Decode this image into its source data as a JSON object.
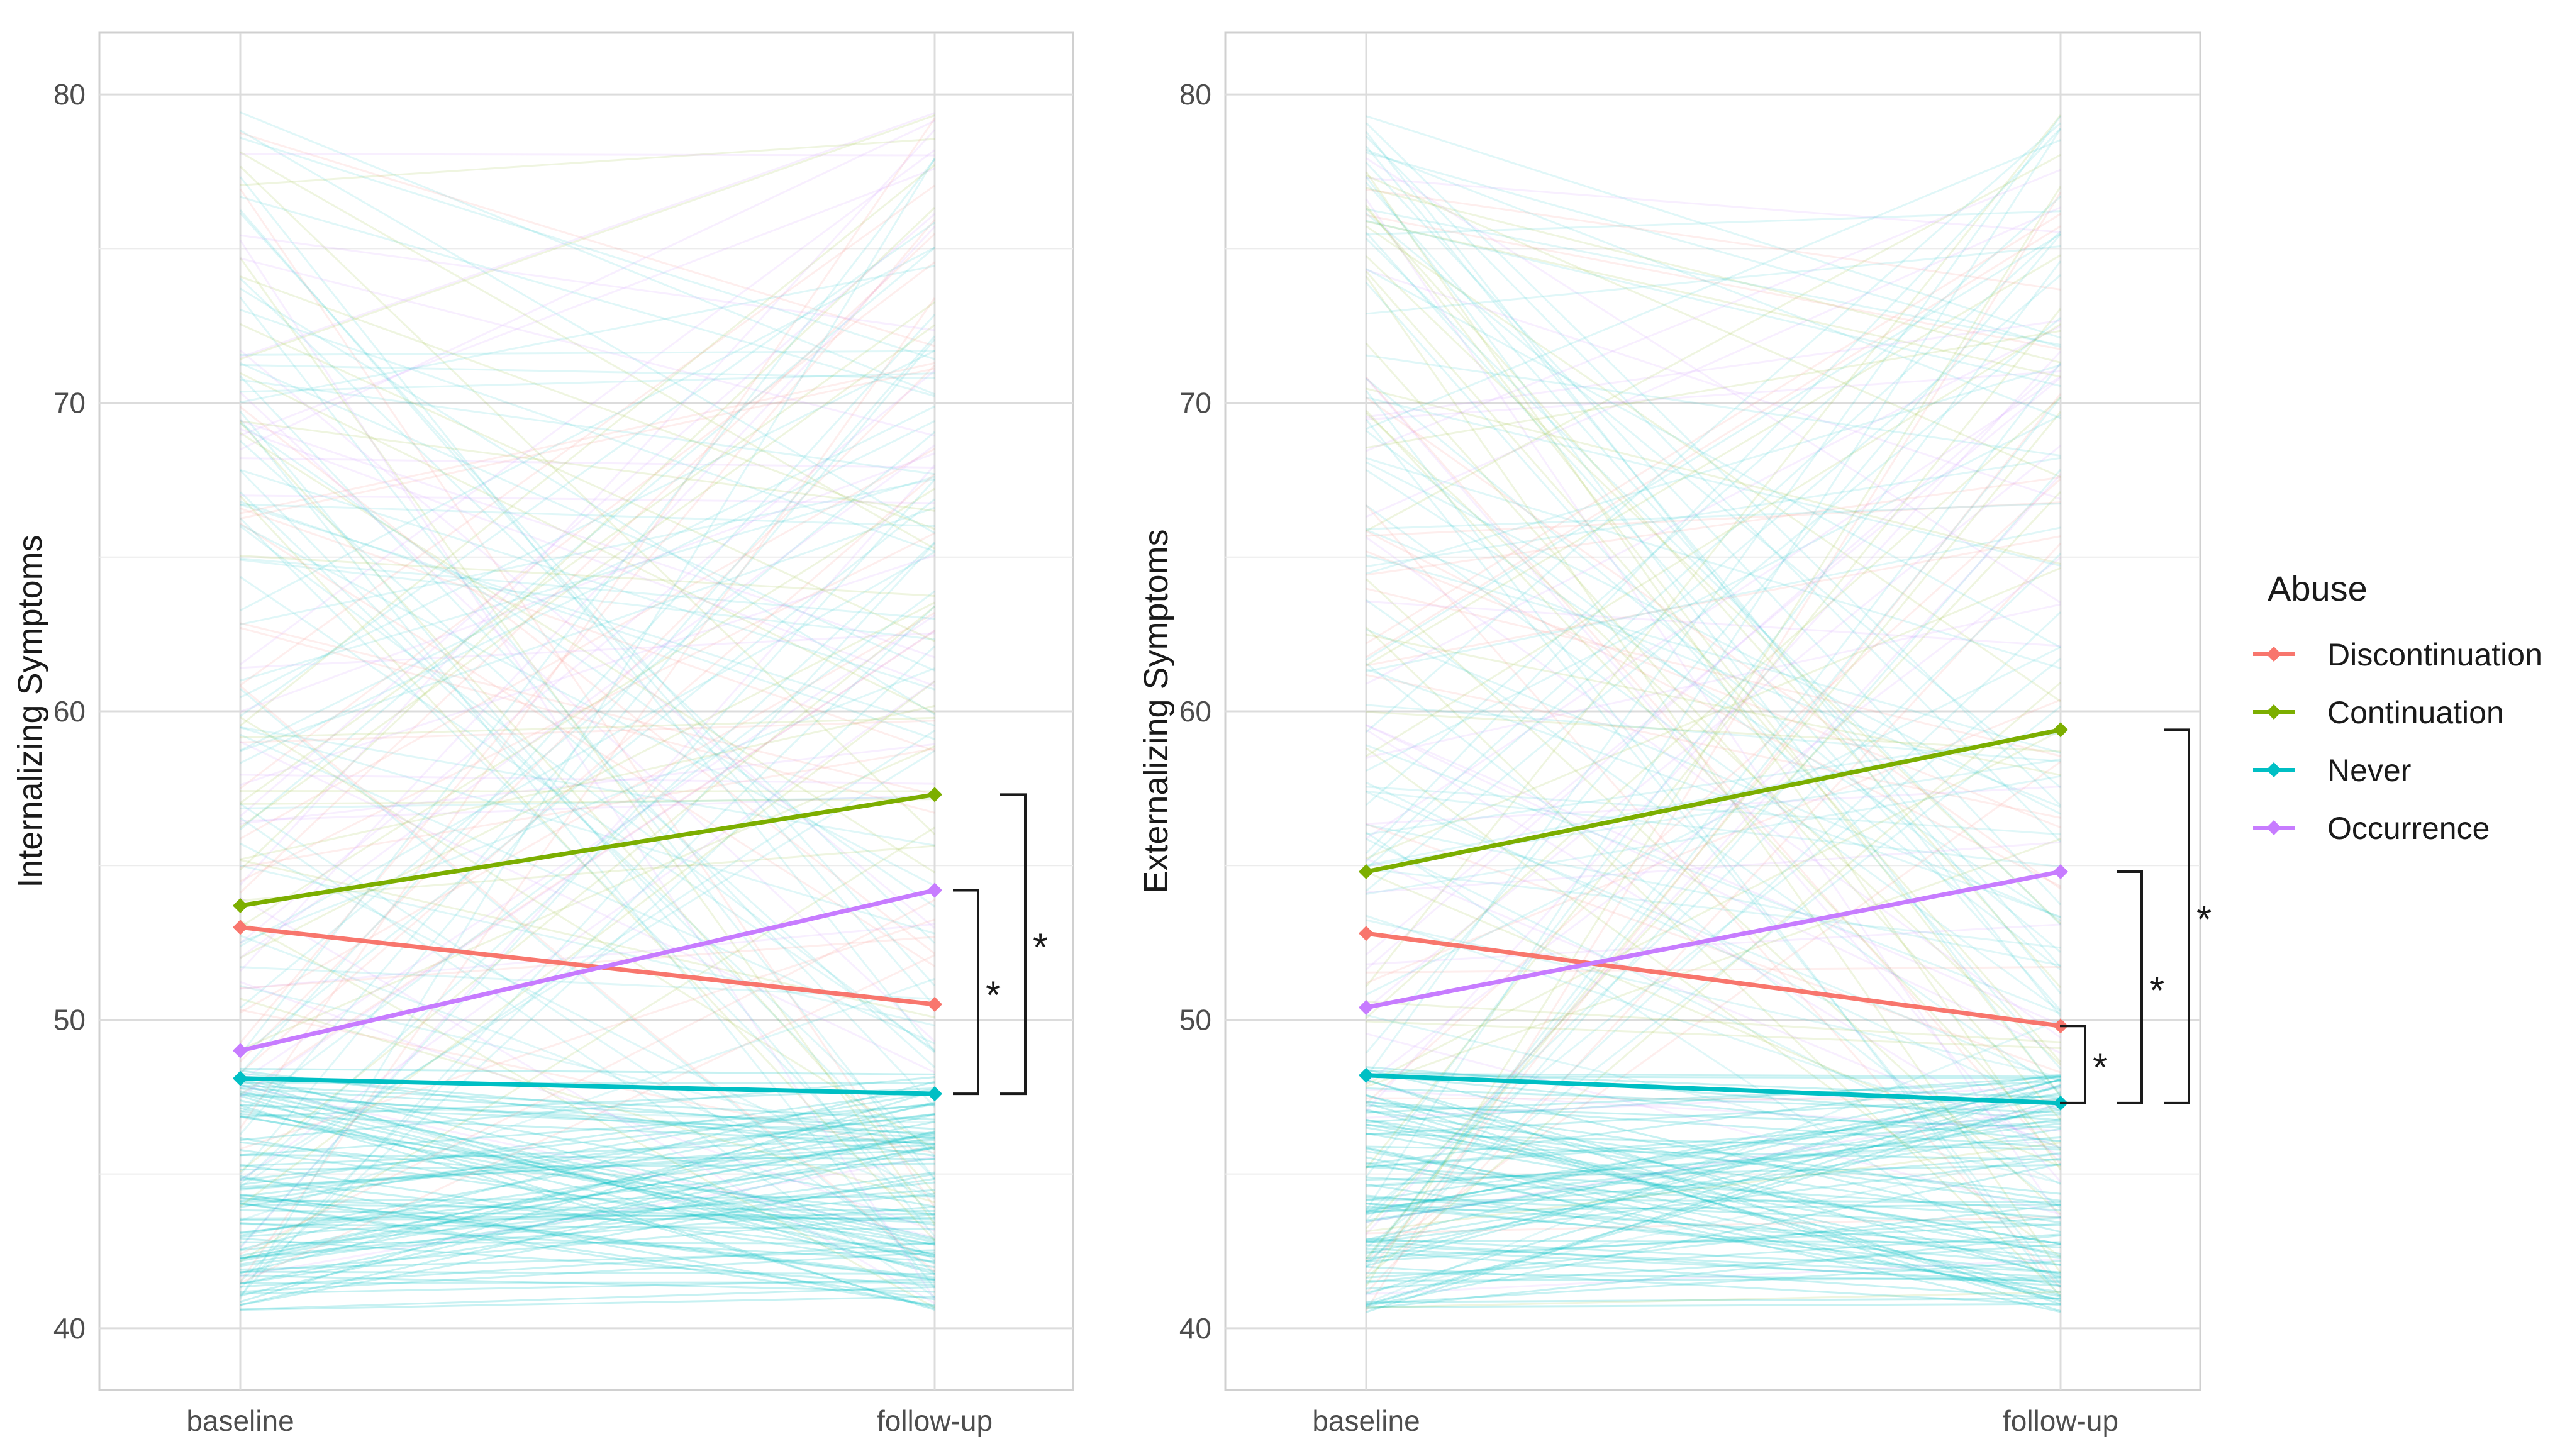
{
  "chart_data": [
    {
      "type": "line",
      "panel": "left",
      "ylabel": "Internalizing Symptoms",
      "xlabel": "",
      "categories": [
        "baseline",
        "follow-up"
      ],
      "ylim": [
        38,
        82
      ],
      "yticks": [
        40,
        50,
        60,
        70,
        80
      ],
      "series": [
        {
          "name": "Discontinuation",
          "values": [
            53.0,
            50.5
          ]
        },
        {
          "name": "Continuation",
          "values": [
            53.7,
            57.3
          ]
        },
        {
          "name": "Never",
          "values": [
            48.1,
            47.6
          ]
        },
        {
          "name": "Occurrence",
          "values": [
            49.0,
            54.2
          ]
        }
      ],
      "significance": [
        {
          "label": "*",
          "from": 47.6,
          "to": 54.2
        },
        {
          "label": "*",
          "from": 47.6,
          "to": 57.3
        }
      ],
      "background_lines": "individual trajectories (faint)"
    },
    {
      "type": "line",
      "panel": "right",
      "ylabel": "Externalizing Symptoms",
      "xlabel": "",
      "categories": [
        "baseline",
        "follow-up"
      ],
      "ylim": [
        38,
        82
      ],
      "yticks": [
        40,
        50,
        60,
        70,
        80
      ],
      "series": [
        {
          "name": "Discontinuation",
          "values": [
            52.8,
            49.8
          ]
        },
        {
          "name": "Continuation",
          "values": [
            54.8,
            59.4
          ]
        },
        {
          "name": "Never",
          "values": [
            48.2,
            47.3
          ]
        },
        {
          "name": "Occurrence",
          "values": [
            50.4,
            54.8
          ]
        }
      ],
      "significance": [
        {
          "label": "*",
          "from": 47.3,
          "to": 49.8
        },
        {
          "label": "*",
          "from": 47.3,
          "to": 54.8
        },
        {
          "label": "*",
          "from": 47.3,
          "to": 59.4
        }
      ],
      "background_lines": "individual trajectories (faint)"
    }
  ],
  "legend": {
    "title": "Abuse",
    "items": [
      {
        "label": "Discontinuation",
        "color": "#F8766D"
      },
      {
        "label": "Continuation",
        "color": "#7CAE00"
      },
      {
        "label": "Never",
        "color": "#00BFC4"
      },
      {
        "label": "Occurrence",
        "color": "#C77CFF"
      }
    ]
  }
}
